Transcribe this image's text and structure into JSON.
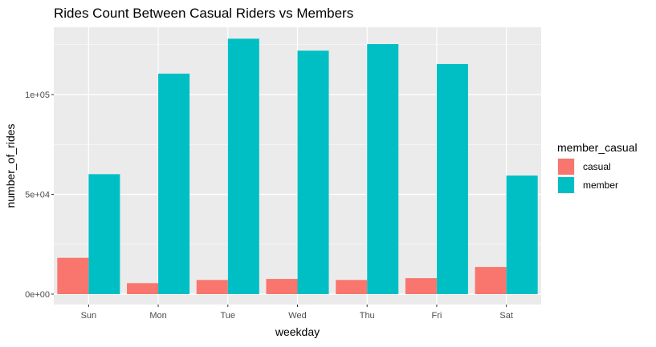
{
  "chart_data": {
    "type": "bar",
    "title": "Rides Count Between Casual Riders vs Members",
    "xlabel": "weekday",
    "ylabel": "number_of_rides",
    "categories": [
      "Sun",
      "Mon",
      "Tue",
      "Wed",
      "Thu",
      "Fri",
      "Sat"
    ],
    "series": [
      {
        "name": "casual",
        "values": [
          18200,
          5500,
          7100,
          7600,
          7100,
          8000,
          13600
        ],
        "color": "#F8766D"
      },
      {
        "name": "member",
        "values": [
          60100,
          110500,
          128000,
          122000,
          125300,
          115300,
          59400
        ],
        "color": "#00BFC4"
      }
    ],
    "ylim": [
      0,
      130000
    ],
    "yticks": [
      {
        "value": 0,
        "label": "0e+00"
      },
      {
        "value": 50000,
        "label": "5e+04"
      },
      {
        "value": 100000,
        "label": "1e+05"
      }
    ],
    "legend": {
      "title": "member_casual",
      "position": "right"
    },
    "grid": true,
    "panel_background": "#EBEBEB",
    "grid_color": "#FFFFFF"
  }
}
